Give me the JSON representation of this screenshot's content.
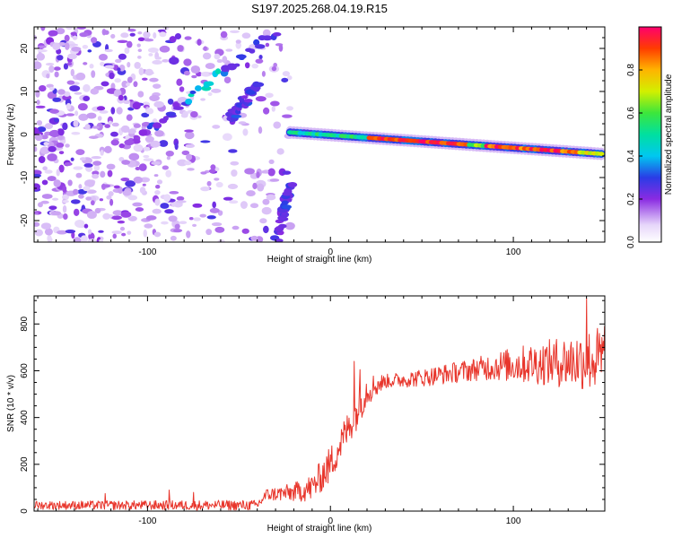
{
  "figure_title": "S197.2025.268.04.19.R15",
  "colors": {
    "axis": "#000000",
    "snr_line": "#e8362c",
    "spec_faint": "#dcc7f4",
    "spec_mid": "#a070e0",
    "spec_dark": "#6a22d6"
  },
  "chart_data": [
    {
      "id": "spectrogram",
      "type": "heatmap",
      "xlabel": "Height of straight line (km)",
      "ylabel": "Frequency (Hz)",
      "xlim": [
        -162,
        150
      ],
      "ylim": [
        -25,
        25
      ],
      "xticks": [
        -100,
        0,
        100
      ],
      "xtick_labels": [
        "-100",
        "0",
        "100"
      ],
      "yticks": [
        -20,
        -10,
        0,
        10,
        20
      ],
      "ytick_labels": [
        "-20",
        "-10",
        "0",
        "10",
        "20"
      ],
      "colorbar": {
        "label": "Normalized spectral amplitude",
        "range": [
          0,
          1
        ],
        "ticks": [
          0,
          0.2,
          0.4,
          0.6,
          0.8
        ],
        "tick_labels": [
          "0.0",
          "0.2",
          "0.4",
          "0.6",
          "0.8"
        ]
      },
      "features": {
        "carrier_line": {
          "x_start": -22,
          "x_end": 148,
          "y_start": 0.5,
          "y_end": -4.5,
          "peak_amplitude": 1.0
        },
        "diagonal_streaks": [
          {
            "x_start": -102,
            "x_end": -28,
            "y_start": 0,
            "y_end": 25
          },
          {
            "x_start": -55,
            "x_end": -40,
            "y_start": 3,
            "y_end": 12
          },
          {
            "x_start": -30,
            "x_end": -22,
            "y_start": -25,
            "y_end": -12
          }
        ],
        "noise_region": {
          "x_min": -162,
          "x_max": -22,
          "amplitude_range": [
            0.05,
            0.3
          ]
        }
      }
    },
    {
      "id": "snr",
      "type": "line",
      "xlabel": "Height of straight line (km)",
      "ylabel": "SNR (10 * v/v)",
      "xlim": [
        -162,
        150
      ],
      "ylim": [
        0,
        920
      ],
      "xticks": [
        -100,
        0,
        100
      ],
      "xtick_labels": [
        "-100",
        "0",
        "100"
      ],
      "yticks": [
        0,
        200,
        400,
        600,
        800
      ],
      "ytick_labels": [
        "0",
        "200",
        "400",
        "600",
        "800"
      ],
      "series": [
        {
          "name": "SNR",
          "anchors": [
            [
              -162,
              25
            ],
            [
              -40,
              25
            ],
            [
              -35,
              70
            ],
            [
              -20,
              80
            ],
            [
              -10,
              100
            ],
            [
              0,
              200
            ],
            [
              5,
              280
            ],
            [
              10,
              360
            ],
            [
              15,
              430
            ],
            [
              20,
              520
            ],
            [
              30,
              555
            ],
            [
              50,
              570
            ],
            [
              70,
              595
            ],
            [
              90,
              620
            ],
            [
              110,
              630
            ],
            [
              130,
              640
            ],
            [
              150,
              650
            ]
          ],
          "noise_amplitude_anchors": [
            [
              -162,
              18
            ],
            [
              -40,
              22
            ],
            [
              -20,
              40
            ],
            [
              0,
              80
            ],
            [
              20,
              70
            ],
            [
              30,
              30
            ],
            [
              80,
              50
            ],
            [
              120,
              100
            ],
            [
              150,
              150
            ]
          ],
          "spikes": [
            [
              -123,
              75
            ],
            [
              -88,
              90
            ],
            [
              -75,
              80
            ],
            [
              13,
              640
            ],
            [
              16,
              605
            ],
            [
              140,
              910
            ],
            [
              150,
              790
            ]
          ]
        }
      ]
    }
  ]
}
